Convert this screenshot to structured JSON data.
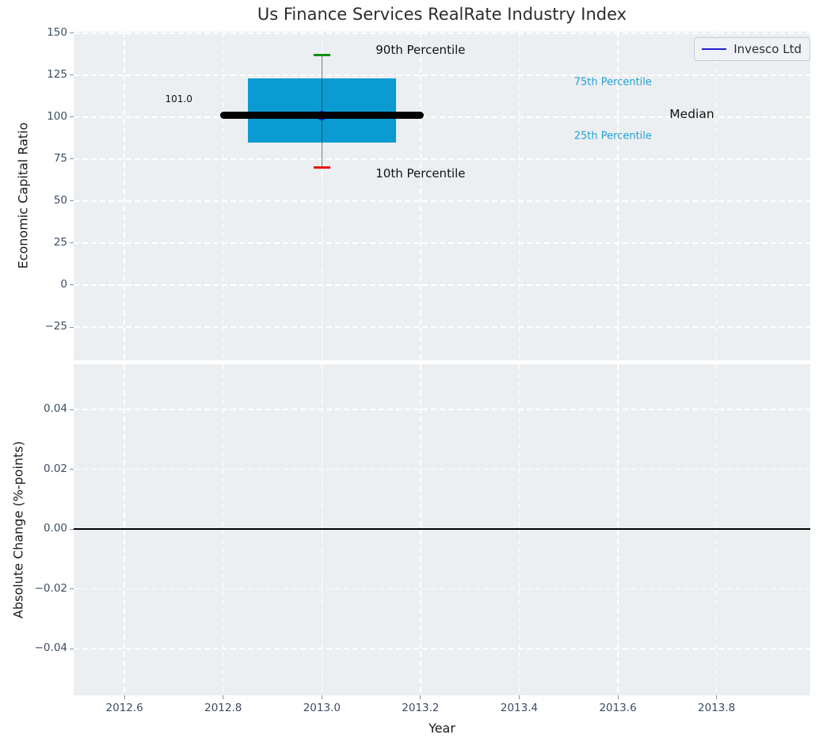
{
  "figure": {
    "background": "#ffffff",
    "axes_background": "#eceff1",
    "grid_color": "#ffffff",
    "tick_color": "#3d4c63",
    "label_color": "#1a1a1a",
    "title_color": "#2d2d2d"
  },
  "legend": {
    "label": "Invesco Ltd",
    "line_color": "#2222cc",
    "position": "upper right"
  },
  "chart_data": [
    {
      "type": "boxplot",
      "title": "Us Finance Services RealRate Industry Index",
      "ylabel": "Economic Capital Ratio",
      "xlabel": "",
      "xlim": [
        2012.497,
        2013.99
      ],
      "ylim": [
        -44.8,
        150.9
      ],
      "xticks": [
        2012.6,
        2012.8,
        2013.0,
        2013.2,
        2013.4,
        2013.6,
        2013.8
      ],
      "xtick_labels": [],
      "yticks": [
        150,
        125,
        100,
        75,
        50,
        25,
        0,
        -25
      ],
      "ytick_labels": [
        "150",
        "125",
        "100",
        "75",
        "50",
        "25",
        "0",
        "−25"
      ],
      "grid": true,
      "legend_position": "upper right",
      "box_halfwidth_years": 0.15,
      "median_halfwidth_years": 0.2065,
      "series": [
        {
          "name": "Invesco Ltd",
          "x": 2013.0,
          "p10": 70,
          "p25": 85,
          "median": 101.0,
          "p75": 123,
          "p90": 137,
          "value": 101.0,
          "value_label": "101.0",
          "box_color": "#0a9bd3",
          "median_color": "#000000",
          "p90_cap_color": "#0d8f0d",
          "p10_cap_color": "#e51212",
          "whisker_color": "rgba(50,50,50,0.65)",
          "marker_color": "#2222cc"
        }
      ],
      "annotations": [
        {
          "text": "90th Percentile",
          "x": 2013.2,
          "y": 140,
          "color": "#111111",
          "size": 15
        },
        {
          "text": "10th Percentile",
          "x": 2013.2,
          "y": 66.5,
          "color": "#111111",
          "size": 15
        },
        {
          "text": "75th Percentile",
          "x": 2013.59,
          "y": 120.5,
          "color": "#22a0d6",
          "size": 13
        },
        {
          "text": "25th Percentile",
          "x": 2013.59,
          "y": 88.5,
          "color": "#22a0d6",
          "size": 13
        },
        {
          "text": "Median",
          "x": 2013.75,
          "y": 102,
          "color": "#111111",
          "size": 15.5
        },
        {
          "text": "101.0",
          "x": 2012.71,
          "y": 111,
          "color": "#111111",
          "size": 12
        }
      ]
    },
    {
      "type": "line",
      "title": "",
      "ylabel": "Absolute Change (%-points)",
      "xlabel": "Year",
      "xlim": [
        2012.497,
        2013.99
      ],
      "ylim": [
        -0.0556,
        0.0551
      ],
      "xticks": [
        2012.6,
        2012.8,
        2013.0,
        2013.2,
        2013.4,
        2013.6,
        2013.8
      ],
      "xtick_labels": [
        "2012.6",
        "2012.8",
        "2013.0",
        "2013.2",
        "2013.4",
        "2013.6",
        "2013.8"
      ],
      "yticks": [
        0.04,
        0.02,
        0.0,
        -0.02,
        -0.04
      ],
      "ytick_labels": [
        "0.04",
        "0.02",
        "0.00",
        "−0.02",
        "−0.04"
      ],
      "grid": true,
      "zero_line": {
        "y": 0.0,
        "color": "#000000"
      },
      "series": []
    }
  ]
}
